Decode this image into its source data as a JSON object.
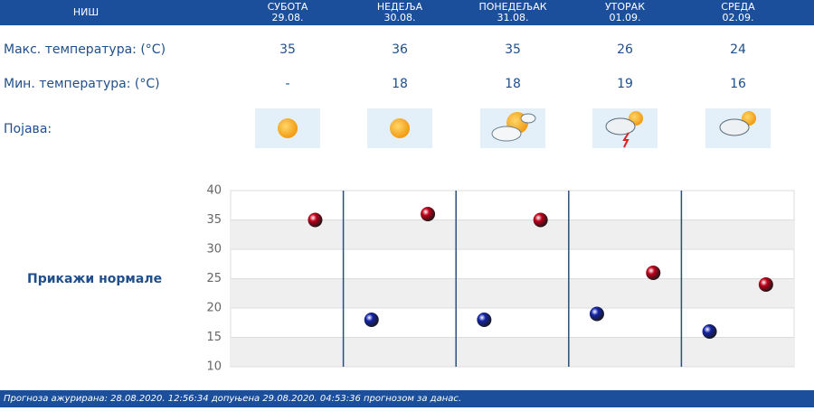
{
  "header": {
    "city": "НИШ",
    "days": [
      {
        "name": "СУБОТА",
        "date": "29.08."
      },
      {
        "name": "НЕДЕЉА",
        "date": "30.08."
      },
      {
        "name": "ПОНЕДЕЉАК",
        "date": "31.08."
      },
      {
        "name": "УТОРАК",
        "date": "01.09."
      },
      {
        "name": "СРЕДА",
        "date": "02.09."
      }
    ]
  },
  "table": {
    "rows": [
      {
        "label": "Макс. температура: (°C)",
        "cells": [
          "35",
          "36",
          "35",
          "26",
          "24"
        ]
      },
      {
        "label": "Мин. температура: (°C)",
        "cells": [
          "-",
          "18",
          "18",
          "19",
          "16"
        ]
      },
      {
        "label": "Појава:"
      }
    ]
  },
  "normals_link": "Прикажи нормале",
  "chart_data": {
    "type": "scatter",
    "categories": [
      null,
      null,
      null,
      null,
      null
    ],
    "series": [
      {
        "color": "#c0001a",
        "values": [
          35,
          36,
          35,
          26,
          24
        ]
      },
      {
        "color": "#1424a8",
        "values": [
          null,
          18,
          18,
          19,
          16
        ]
      }
    ],
    "ylim": [
      10,
      40
    ],
    "yticks": [
      10,
      15,
      20,
      25,
      30,
      35,
      40
    ],
    "grid": true
  },
  "footer": "Прогноза ажурирана:  28.08.2020.  12:56:34 допуњена 29.08.2020.  04:53:36  прогнозом за данас."
}
